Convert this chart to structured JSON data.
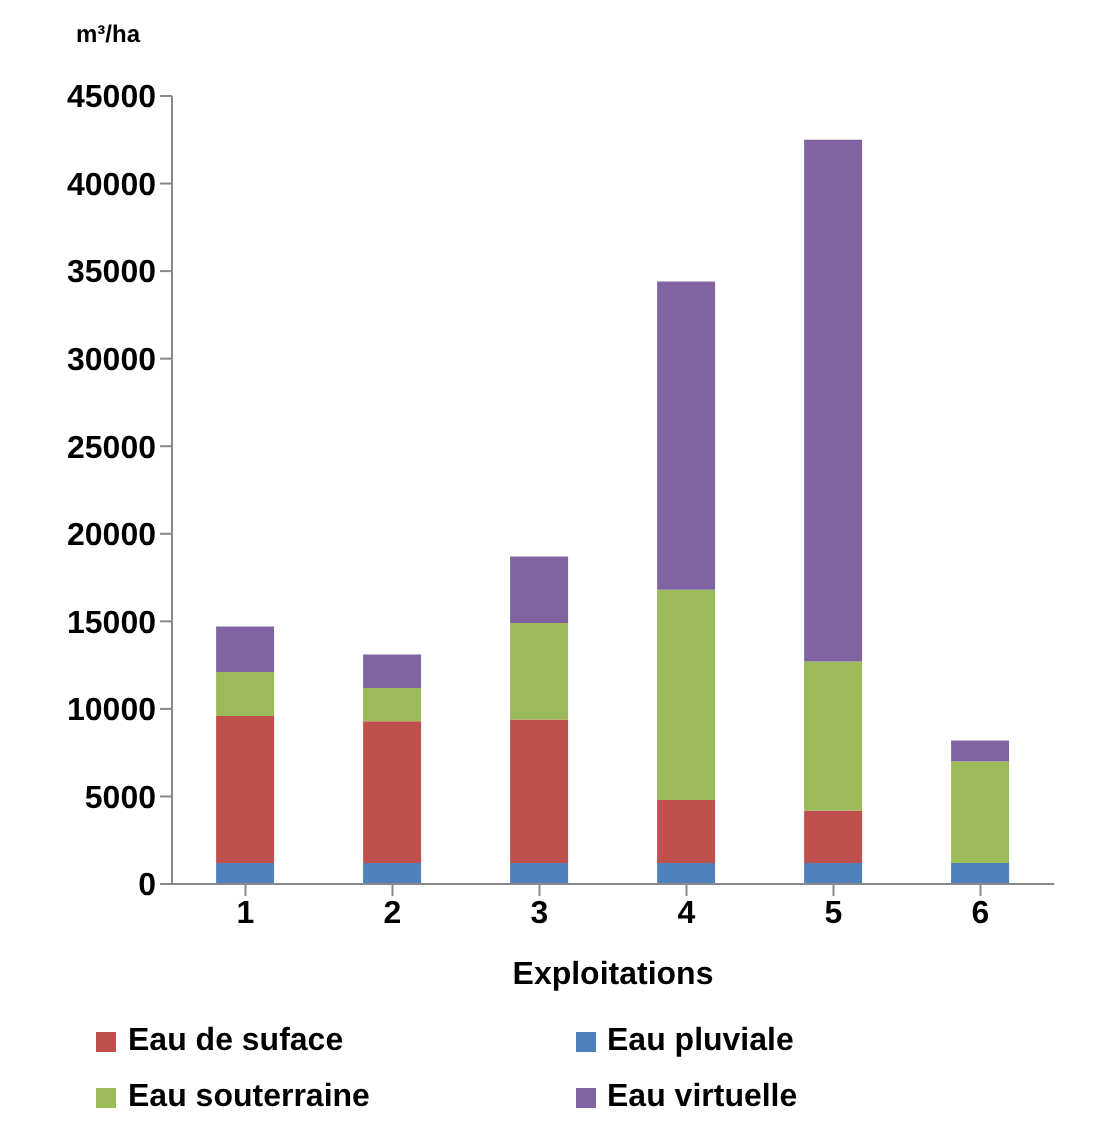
{
  "chart_data": {
    "type": "bar",
    "stacked": true,
    "xlabel": "Exploitations",
    "ylabel": "m³/ha",
    "categories": [
      "1",
      "2",
      "3",
      "4",
      "5",
      "6"
    ],
    "series": [
      {
        "name": "Eau pluviale",
        "color": "#4f81bd",
        "values": [
          1200,
          1200,
          1200,
          1200,
          1200,
          1200
        ]
      },
      {
        "name": "Eau de suface",
        "color": "#c0504d",
        "values": [
          8400,
          8100,
          8200,
          3600,
          3000,
          0
        ]
      },
      {
        "name": "Eau souterraine",
        "color": "#9bbb59",
        "values": [
          2500,
          1900,
          5500,
          12000,
          8500,
          5800
        ]
      },
      {
        "name": "Eau virtuelle",
        "color": "#8064a2",
        "values": [
          2600,
          1900,
          3800,
          17600,
          29800,
          1200
        ]
      }
    ],
    "ylim": [
      0,
      45000
    ],
    "yticks": [
      0,
      5000,
      10000,
      15000,
      20000,
      25000,
      30000,
      35000,
      40000,
      45000
    ],
    "grid": false,
    "legend": "bottom"
  }
}
